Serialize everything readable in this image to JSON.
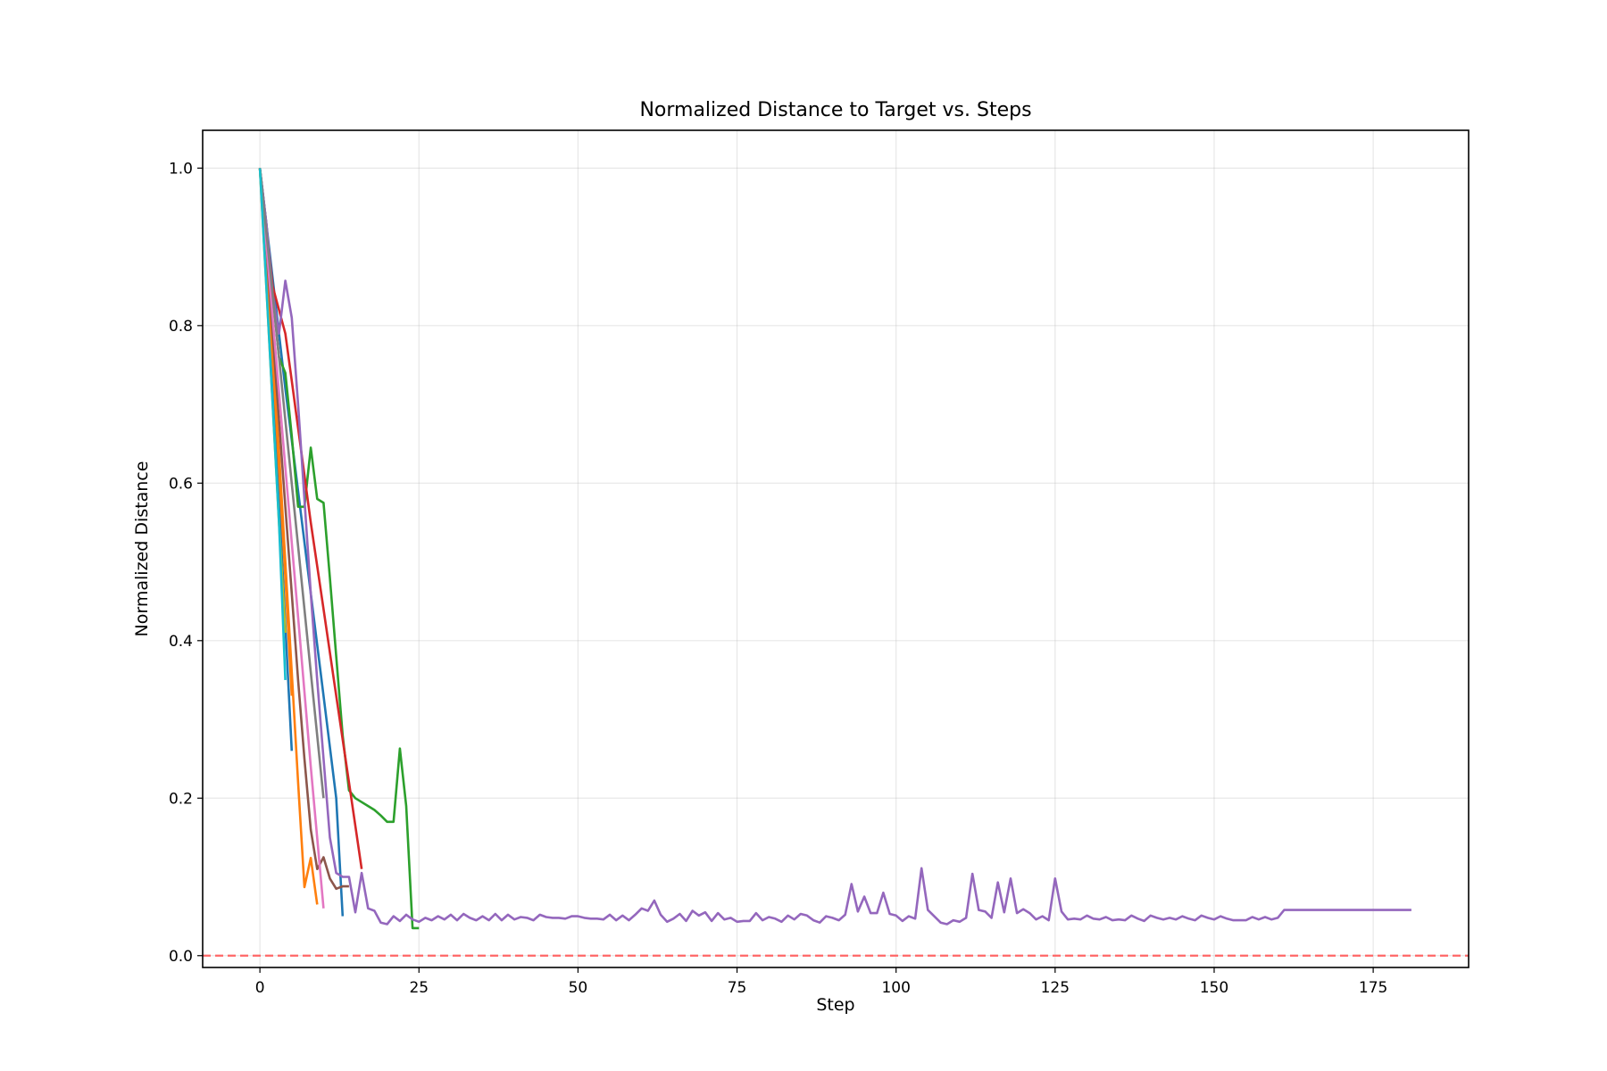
{
  "chart_data": {
    "type": "line",
    "title": "Normalized Distance to Target vs. Steps",
    "xlabel": "Step",
    "ylabel": "Normalized Distance",
    "xlim": [
      -9,
      190
    ],
    "ylim": [
      -0.015,
      1.048
    ],
    "xticks": [
      0,
      25,
      50,
      75,
      100,
      125,
      150,
      175
    ],
    "xtick_labels": [
      "0",
      "25",
      "50",
      "75",
      "100",
      "125",
      "150",
      "175"
    ],
    "yticks": [
      0.0,
      0.2,
      0.4,
      0.6,
      0.8,
      1.0
    ],
    "ytick_labels": [
      "0.0",
      "0.2",
      "0.4",
      "0.6",
      "0.8",
      "1.0"
    ],
    "grid": true,
    "reference_line": {
      "y": 0.0,
      "color": "#ff6666",
      "style": "dashed"
    },
    "series": [
      {
        "color": "#1f77b4",
        "x": [
          0,
          2,
          4,
          6,
          8,
          10,
          12,
          13
        ],
        "y": [
          1.0,
          0.86,
          0.72,
          0.59,
          0.46,
          0.33,
          0.2,
          0.05
        ]
      },
      {
        "color": "#1f77b4",
        "x": [
          0,
          1,
          2,
          3,
          4,
          5
        ],
        "y": [
          1.0,
          0.87,
          0.73,
          0.58,
          0.42,
          0.26
        ]
      },
      {
        "color": "#ff7f0e",
        "x": [
          0,
          1,
          2,
          3,
          4,
          5,
          6,
          7,
          8,
          9
        ],
        "y": [
          1.0,
          0.88,
          0.76,
          0.64,
          0.5,
          0.36,
          0.22,
          0.087,
          0.124,
          0.065
        ]
      },
      {
        "color": "#ff7f0e",
        "x": [
          0,
          1,
          2,
          3,
          4,
          5
        ],
        "y": [
          1.0,
          0.88,
          0.76,
          0.62,
          0.48,
          0.33
        ]
      },
      {
        "color": "#2ca02c",
        "x": [
          0,
          1,
          2,
          3,
          4,
          5,
          6,
          7,
          8,
          9,
          10,
          11,
          12,
          13,
          14,
          15,
          16,
          17,
          18,
          19,
          20,
          21,
          22,
          23,
          24,
          25
        ],
        "y": [
          1.0,
          0.93,
          0.84,
          0.76,
          0.74,
          0.66,
          0.57,
          0.57,
          0.645,
          0.58,
          0.575,
          0.48,
          0.38,
          0.28,
          0.21,
          0.2,
          0.195,
          0.19,
          0.185,
          0.178,
          0.17,
          0.17,
          0.263,
          0.19,
          0.035,
          0.035
        ]
      },
      {
        "color": "#d62728",
        "x": [
          0,
          2,
          4,
          5,
          6,
          8,
          10,
          12,
          14,
          16
        ],
        "y": [
          1.0,
          0.85,
          0.79,
          0.73,
          0.67,
          0.55,
          0.44,
          0.33,
          0.22,
          0.11
        ]
      },
      {
        "color": "#9467bd",
        "x": [
          0,
          1,
          2,
          3,
          4,
          5,
          6,
          7,
          8,
          9,
          10,
          11,
          12,
          13,
          14,
          15,
          16,
          17,
          18,
          19,
          20,
          21,
          22,
          23,
          24,
          25,
          26,
          27,
          28,
          29,
          30,
          31,
          32,
          33,
          34,
          35,
          36,
          37,
          38,
          39,
          40,
          41,
          42,
          43,
          44,
          45,
          46,
          47,
          48,
          49,
          50,
          51,
          52,
          53,
          54,
          55,
          56,
          57,
          58,
          59,
          60,
          61,
          62,
          63,
          64,
          65,
          66,
          67,
          68,
          69,
          70,
          71,
          72,
          73,
          74,
          75,
          76,
          77,
          78,
          79,
          80,
          81,
          82,
          83,
          84,
          85,
          86,
          87,
          88,
          89,
          90,
          91,
          92,
          93,
          94,
          95,
          96,
          97,
          98,
          99,
          100,
          101,
          102,
          103,
          104,
          105,
          106,
          107,
          108,
          109,
          110,
          111,
          112,
          113,
          114,
          115,
          116,
          117,
          118,
          119,
          120,
          121,
          122,
          123,
          124,
          125,
          126,
          127,
          128,
          129,
          130,
          131,
          132,
          133,
          134,
          135,
          136,
          137,
          138,
          139,
          140,
          141,
          142,
          143,
          144,
          145,
          146,
          147,
          148,
          149,
          150,
          151,
          152,
          153,
          154,
          155,
          156,
          157,
          158,
          159,
          160,
          161,
          181
        ],
        "y": [
          1.0,
          0.93,
          0.84,
          0.79,
          0.857,
          0.81,
          0.7,
          0.58,
          0.46,
          0.35,
          0.25,
          0.15,
          0.105,
          0.1,
          0.1,
          0.055,
          0.105,
          0.06,
          0.057,
          0.042,
          0.04,
          0.05,
          0.044,
          0.052,
          0.046,
          0.043,
          0.048,
          0.045,
          0.05,
          0.046,
          0.052,
          0.045,
          0.053,
          0.048,
          0.045,
          0.05,
          0.045,
          0.053,
          0.045,
          0.052,
          0.046,
          0.049,
          0.048,
          0.045,
          0.052,
          0.049,
          0.048,
          0.048,
          0.047,
          0.05,
          0.05,
          0.048,
          0.047,
          0.047,
          0.046,
          0.052,
          0.045,
          0.051,
          0.045,
          0.052,
          0.06,
          0.057,
          0.07,
          0.052,
          0.043,
          0.047,
          0.053,
          0.044,
          0.057,
          0.051,
          0.055,
          0.044,
          0.054,
          0.046,
          0.048,
          0.043,
          0.044,
          0.044,
          0.054,
          0.045,
          0.049,
          0.047,
          0.043,
          0.051,
          0.046,
          0.053,
          0.051,
          0.045,
          0.042,
          0.05,
          0.048,
          0.045,
          0.052,
          0.091,
          0.056,
          0.075,
          0.054,
          0.054,
          0.08,
          0.053,
          0.051,
          0.044,
          0.05,
          0.047,
          0.111,
          0.058,
          0.05,
          0.042,
          0.04,
          0.045,
          0.043,
          0.048,
          0.104,
          0.058,
          0.056,
          0.048,
          0.093,
          0.055,
          0.098,
          0.054,
          0.059,
          0.054,
          0.046,
          0.05,
          0.045,
          0.098,
          0.056,
          0.046,
          0.047,
          0.046,
          0.051,
          0.047,
          0.046,
          0.049,
          0.045,
          0.046,
          0.045,
          0.051,
          0.047,
          0.044,
          0.051,
          0.048,
          0.046,
          0.048,
          0.046,
          0.05,
          0.047,
          0.045,
          0.051,
          0.048,
          0.046,
          0.05,
          0.047,
          0.045,
          0.045,
          0.045,
          0.049,
          0.046,
          0.049,
          0.046,
          0.048,
          0.058,
          0.058
        ]
      },
      {
        "color": "#8c564b",
        "x": [
          0,
          1,
          2,
          3,
          4,
          5,
          6,
          7,
          8,
          9,
          10,
          11,
          12,
          13,
          14
        ],
        "y": [
          1.0,
          0.9,
          0.79,
          0.68,
          0.57,
          0.46,
          0.35,
          0.25,
          0.16,
          0.11,
          0.125,
          0.098,
          0.085,
          0.088,
          0.088
        ]
      },
      {
        "color": "#e377c2",
        "x": [
          0,
          2,
          4,
          6,
          8,
          10
        ],
        "y": [
          1.0,
          0.81,
          0.62,
          0.43,
          0.24,
          0.06
        ]
      },
      {
        "color": "#7f7f7f",
        "x": [
          0,
          2,
          4,
          6,
          8,
          10
        ],
        "y": [
          1.0,
          0.84,
          0.68,
          0.52,
          0.36,
          0.2
        ]
      },
      {
        "color": "#bcbd22",
        "x": [
          0,
          1,
          2,
          3,
          4
        ],
        "y": [
          1.0,
          0.85,
          0.7,
          0.55,
          0.41
        ]
      },
      {
        "color": "#17becf",
        "x": [
          0,
          1,
          2,
          3,
          4
        ],
        "y": [
          1.0,
          0.85,
          0.7,
          0.55,
          0.35
        ]
      }
    ]
  }
}
